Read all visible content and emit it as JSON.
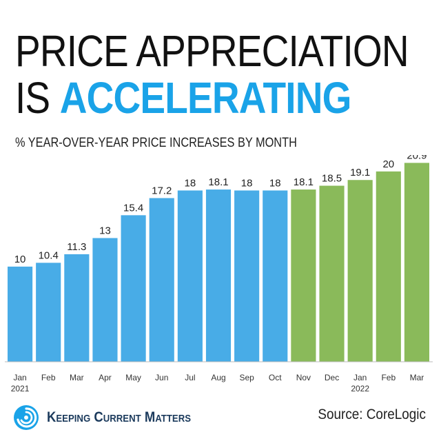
{
  "title": {
    "line1": "PRICE APPRECIATION",
    "line2_prefix": "IS ",
    "line2_accent": "ACCELERATING"
  },
  "subtitle": "% YEAR-OVER-YEAR PRICE INCREASES BY MONTH",
  "footer": {
    "logo_text": "Keeping Current Matters",
    "source": "Source: CoreLogic"
  },
  "colors": {
    "blue": "#48ace7",
    "green": "#8aba5a",
    "accent": "#1aa3e8",
    "text": "#222222"
  },
  "chart_data": {
    "type": "bar",
    "title": "",
    "xlabel": "",
    "ylabel": "",
    "ylim": [
      0,
      21
    ],
    "grid": false,
    "categories": [
      {
        "month": "Jan",
        "year": "2021"
      },
      {
        "month": "Feb",
        "year": ""
      },
      {
        "month": "Mar",
        "year": ""
      },
      {
        "month": "Apr",
        "year": ""
      },
      {
        "month": "May",
        "year": ""
      },
      {
        "month": "Jun",
        "year": ""
      },
      {
        "month": "Jul",
        "year": ""
      },
      {
        "month": "Aug",
        "year": ""
      },
      {
        "month": "Sep",
        "year": ""
      },
      {
        "month": "Oct",
        "year": ""
      },
      {
        "month": "Nov",
        "year": ""
      },
      {
        "month": "Dec",
        "year": ""
      },
      {
        "month": "Jan",
        "year": "2022"
      },
      {
        "month": "Feb",
        "year": ""
      },
      {
        "month": "Mar",
        "year": ""
      }
    ],
    "values": [
      10,
      10.4,
      11.3,
      13,
      15.4,
      17.2,
      18,
      18.1,
      18,
      18,
      18.1,
      18.5,
      19.1,
      20,
      20.9
    ],
    "bar_colors": [
      "blue",
      "blue",
      "blue",
      "blue",
      "blue",
      "blue",
      "blue",
      "blue",
      "blue",
      "blue",
      "green",
      "green",
      "green",
      "green",
      "green"
    ]
  }
}
